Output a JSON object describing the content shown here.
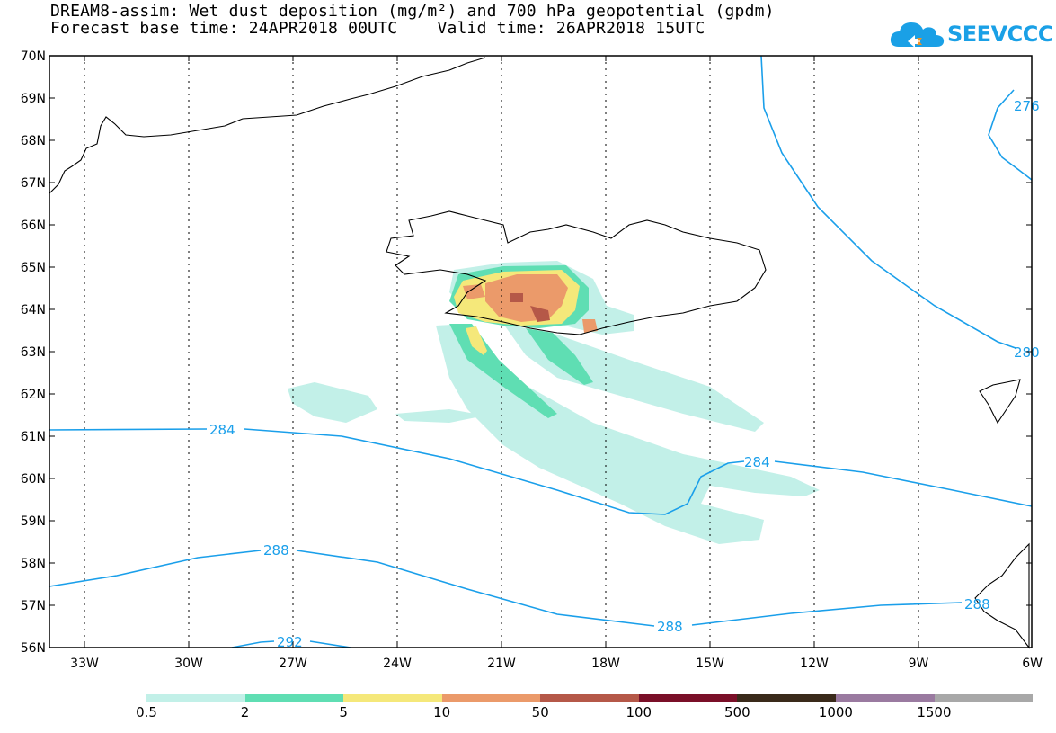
{
  "title_line1": "DREAM8-assim: Wet dust deposition (mg/m²) and 700 hPa geopotential (gpdm)",
  "title_line2": "Forecast base time: 24APR2018 00UTC    Valid time: 26APR2018 15UTC",
  "logo_text": "SEEVCCC",
  "logo_icon": "cloud-icon",
  "lat_labels": [
    "70N",
    "69N",
    "68N",
    "67N",
    "66N",
    "65N",
    "64N",
    "63N",
    "62N",
    "61N",
    "60N",
    "59N",
    "58N",
    "57N",
    "56N"
  ],
  "lon_labels": [
    "33W",
    "30W",
    "27W",
    "24W",
    "21W",
    "18W",
    "15W",
    "12W",
    "9W",
    "6W"
  ],
  "contour_labels": {
    "c284a": "284",
    "c284b": "284",
    "c288a": "288",
    "c288b": "288",
    "c288c": "288",
    "c292": "292",
    "c280": "280",
    "c276": "276"
  },
  "legend": {
    "colors": [
      "#c2f0e8",
      "#5fdeb3",
      "#f5e87a",
      "#eb9a6a",
      "#b55848",
      "#7a0f28",
      "#3a2a1a",
      "#9a7aa0",
      "#a8a8a8"
    ],
    "labels": [
      "0.5",
      "2",
      "5",
      "10",
      "50",
      "100",
      "500",
      "1000",
      "1500"
    ]
  },
  "colors": {
    "contour": "#1a9fea",
    "frame": "#000000"
  }
}
